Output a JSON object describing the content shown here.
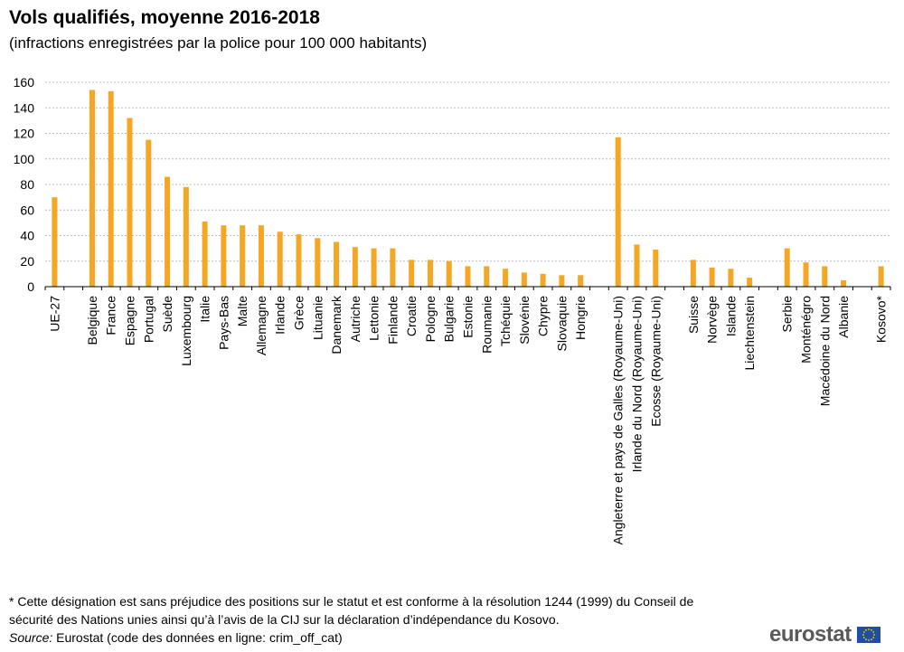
{
  "title": "Vols qualifiés, moyenne 2016-2018",
  "subtitle": "(infractions enregistrées par la police pour 100 000 habitants)",
  "footnote": "* Cette désignation est sans préjudice des positions sur le statut et est conforme à la résolution 1244 (1999) du Conseil de sécurité des Nations unies ainsi qu’à l’avis de la CIJ sur la déclaration d’indépendance du Kosovo.",
  "source_label": "Source:",
  "source_text": " Eurostat (code des données en ligne: crim_off_cat)",
  "logo_text": "eurostat",
  "colors": {
    "bar": "#f5a623",
    "grid": "#bdbdbd",
    "axis": "#000000"
  },
  "chart_data": {
    "type": "bar",
    "ylim": [
      0,
      160
    ],
    "yticks": [
      0,
      20,
      40,
      60,
      80,
      100,
      120,
      140,
      160
    ],
    "grid": true,
    "categories": [
      "UE-27",
      "",
      "Belgique",
      "France",
      "Espagne",
      "Portugal",
      "Suède",
      "Luxembourg",
      "Italie",
      "Pays-Bas",
      "Malte",
      "Allemagne",
      "Irlande",
      "Grèce",
      "Lituanie",
      "Danemark",
      "Autriche",
      "Lettonie",
      "Finlande",
      "Croatie",
      "Pologne",
      "Bulgarie",
      "Estonie",
      "Roumanie",
      "Tchéquie",
      "Slovénie",
      "Chypre",
      "Slovaquie",
      "Hongrie",
      "",
      "Angleterre et pays de Galles (Royaume-Uni)",
      "Irlande du Nord (Royaume-Uni)",
      "Ecosse (Royaume-Uni)",
      "",
      "Suisse",
      "Norvège",
      "Islande",
      "Liechtenstein",
      "",
      "Serbie",
      "Monténégro",
      "Macédoine du Nord",
      "Albanie",
      "",
      "Kosovo*"
    ],
    "values": [
      70,
      null,
      154,
      153,
      132,
      115,
      86,
      78,
      51,
      48,
      48,
      48,
      43,
      41,
      38,
      35,
      31,
      30,
      30,
      21,
      21,
      20,
      16,
      16,
      14,
      11,
      10,
      9,
      9,
      null,
      117,
      33,
      29,
      null,
      21,
      15,
      14,
      7,
      null,
      30,
      19,
      16,
      5,
      null,
      16
    ]
  }
}
